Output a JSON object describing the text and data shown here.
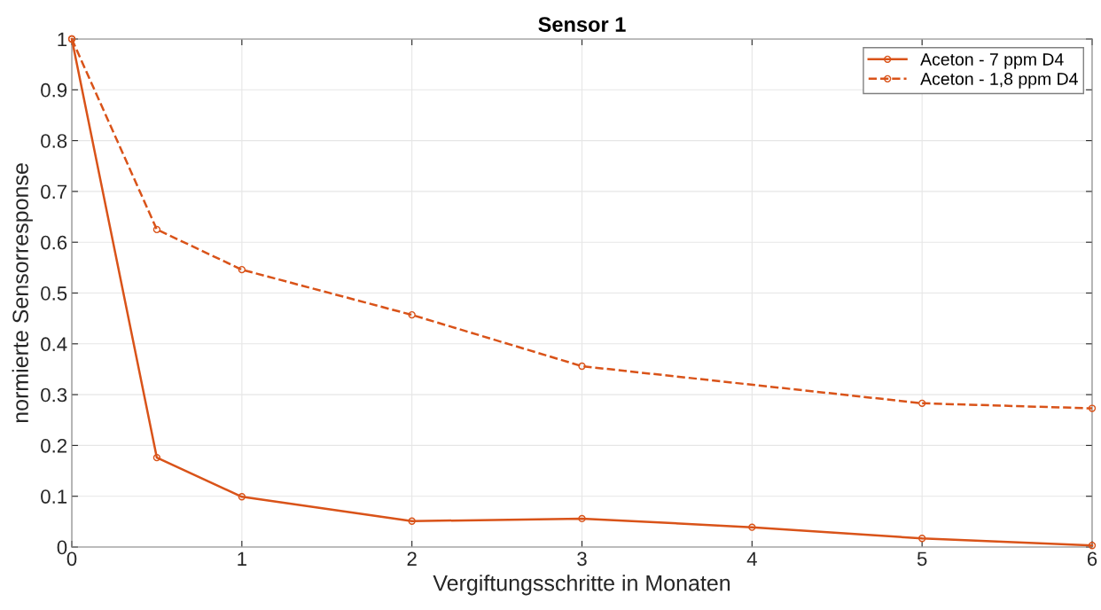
{
  "chart_data": {
    "type": "line",
    "title": "Sensor 1",
    "xlabel": "Vergiftungsschritte in Monaten",
    "ylabel": "normierte Sensorresponse",
    "xlim": [
      0,
      6
    ],
    "xticks": [
      0,
      1,
      2,
      3,
      4,
      5,
      6
    ],
    "ylim": [
      0,
      1
    ],
    "yticks": [
      0,
      {
        "value": 0.1,
        "label": "0.1"
      },
      {
        "value": 0.2,
        "label": "0.2"
      },
      {
        "value": 0.3,
        "label": "0.3"
      },
      {
        "value": 0.4,
        "label": "0.4"
      },
      {
        "value": 0.5,
        "label": "0.5"
      },
      {
        "value": 0.6,
        "label": "0.6"
      },
      {
        "value": 0.7,
        "label": "0.7"
      },
      {
        "value": 0.8,
        "label": "0.8"
      },
      {
        "value": 0.9,
        "label": "0.9"
      },
      1
    ],
    "grid": true,
    "legend": "top right",
    "marker": "circle",
    "series": [
      {
        "name": "Aceton - 7 ppm D4",
        "color": "#d95319",
        "line_style": "solid",
        "x": [
          0,
          0.5,
          1,
          2,
          3,
          4,
          5,
          6
        ],
        "values": [
          1,
          0.176,
          0.099,
          0.051,
          0.056,
          0.039,
          0.017,
          0.003
        ]
      },
      {
        "name": "Aceton - 1,8 ppm D4",
        "color": "#d95319",
        "line_style": "dashed",
        "x": [
          0,
          0.5,
          1,
          2,
          3,
          5,
          6
        ],
        "values": [
          1,
          0.625,
          0.546,
          0.457,
          0.356,
          0.283,
          0.273
        ]
      }
    ]
  }
}
